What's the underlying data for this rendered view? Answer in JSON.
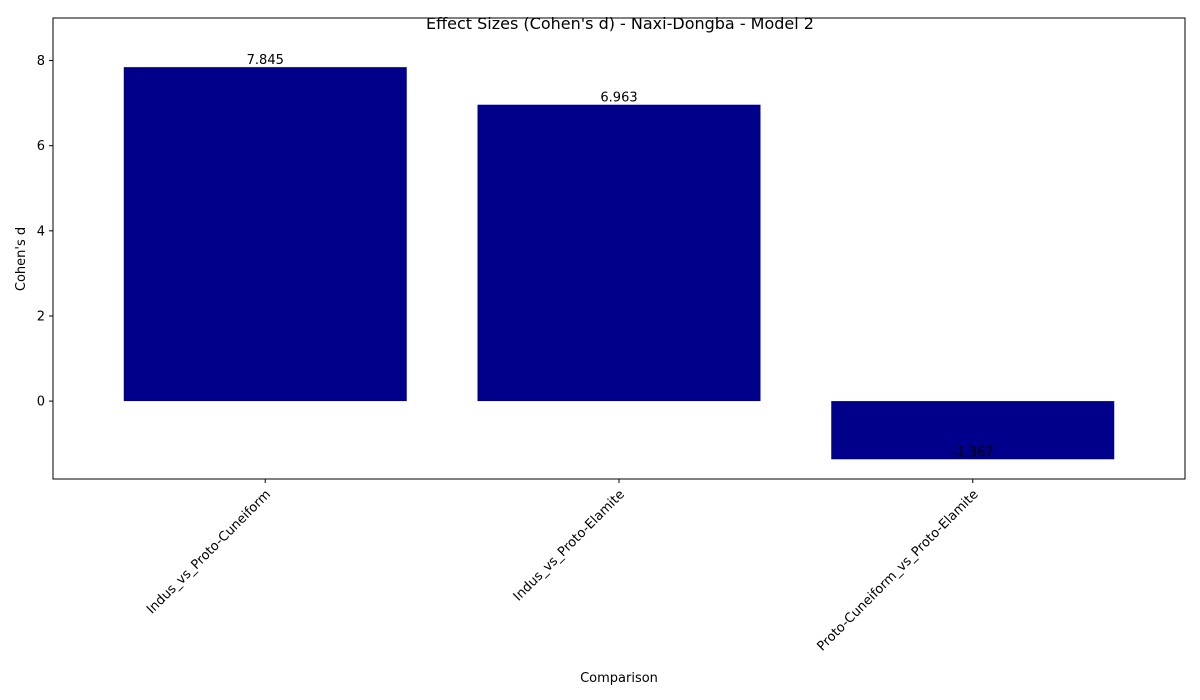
{
  "chart_data": {
    "type": "bar",
    "title": "Effect Sizes (Cohen's d) - Naxi-Dongba - Model 2",
    "xlabel": "Comparison",
    "ylabel": "Cohen's d",
    "categories": [
      "Indus_vs_Proto-Cuneiform",
      "Indus_vs_Proto-Elamite",
      "Proto-Cuneiform_vs_Proto-Elamite"
    ],
    "values": [
      7.845,
      6.963,
      -1.367
    ],
    "data_labels": [
      "7.845",
      "6.963",
      "-1.367"
    ],
    "yticks": [
      0,
      2,
      4,
      6,
      8
    ],
    "ylim": [
      -1.83,
      9.0
    ],
    "bar_color": "#00008b",
    "grid": false,
    "legend": "none",
    "x_tick_rotation": 45
  }
}
